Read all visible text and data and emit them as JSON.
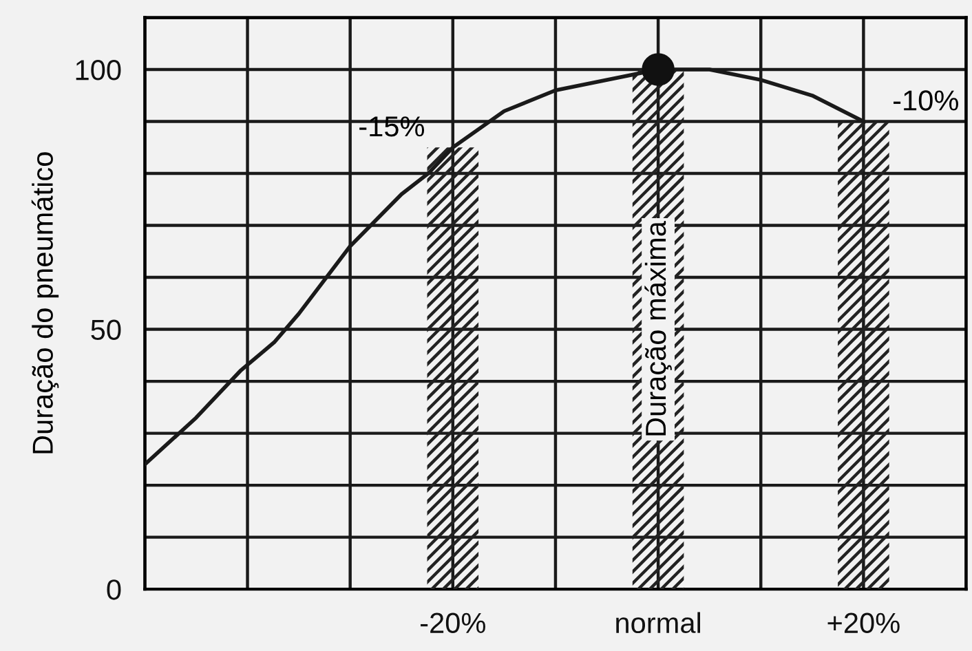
{
  "chart_data": {
    "type": "bar",
    "ylabel": "Duração do pneumático",
    "xlim": [
      -50,
      30
    ],
    "ylim": [
      0,
      110
    ],
    "xticks": [
      {
        "value": -50,
        "label": null
      },
      {
        "value": -40,
        "label": null
      },
      {
        "value": -30,
        "label": null
      },
      {
        "value": -20,
        "label": "-20%"
      },
      {
        "value": -10,
        "label": null
      },
      {
        "value": 0,
        "label": "normal"
      },
      {
        "value": 10,
        "label": null
      },
      {
        "value": 20,
        "label": "+20%"
      },
      {
        "value": 30,
        "label": null
      }
    ],
    "yticks": [
      0,
      {
        "value": 10,
        "label": null
      },
      {
        "value": 20,
        "label": null
      },
      {
        "value": 30,
        "label": null
      },
      {
        "value": 40,
        "label": null
      },
      50,
      {
        "value": 60,
        "label": null
      },
      {
        "value": 70,
        "label": null
      },
      {
        "value": 80,
        "label": null
      },
      {
        "value": 90,
        "label": null
      },
      100,
      {
        "value": 110,
        "label": null
      }
    ],
    "grid": true,
    "series": [
      {
        "color": "#222222",
        "x": [
          -20,
          0,
          20
        ],
        "values": [
          85,
          100,
          90
        ]
      },
      {
        "type": "line",
        "color": "#1a1a1a",
        "marker": "none",
        "x": [
          -50,
          -45,
          -40.7,
          -37.4,
          -35,
          -30,
          -25,
          -22.4,
          -20,
          -15,
          -10,
          0,
          5,
          10,
          15,
          20
        ],
        "values": [
          24,
          33,
          42,
          47.5,
          53,
          66,
          76,
          80,
          85,
          92,
          96,
          100,
          100,
          98,
          95,
          90
        ]
      },
      {
        "type": "scatter",
        "color": "#111111",
        "marker": "circle",
        "x": [
          0
        ],
        "values": [
          100
        ]
      }
    ],
    "annotations": [
      {
        "text": "-15%",
        "x": -20,
        "y": 85
      },
      {
        "text": "-10%",
        "x": 20,
        "y": 90
      },
      "Duração máxima"
    ]
  }
}
